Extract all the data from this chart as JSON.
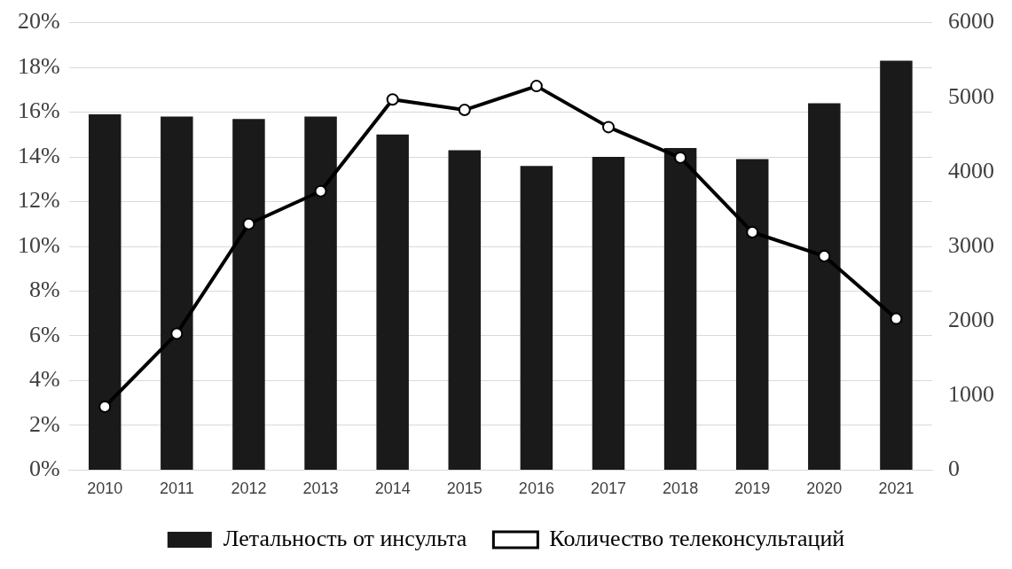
{
  "chart_data": {
    "type": "bar",
    "categories": [
      "2010",
      "2011",
      "2012",
      "2013",
      "2014",
      "2015",
      "2016",
      "2017",
      "2018",
      "2019",
      "2020",
      "2021"
    ],
    "series": [
      {
        "name": "Летальность от инсульта",
        "color": "#1a1a1a",
        "values": [
          15.9,
          15.8,
          15.7,
          15.8,
          15.0,
          14.3,
          13.6,
          14.0,
          14.4,
          13.9,
          16.4,
          18.3
        ]
      },
      {
        "name": "Количество телеконсультаций",
        "type": "line",
        "axis": "y2",
        "color": "#000000",
        "marker": "circle",
        "values": [
          850,
          1830,
          3300,
          3740,
          4970,
          4830,
          5150,
          4600,
          4190,
          3190,
          2870,
          2030
        ]
      }
    ],
    "ylim": [
      0,
      20
    ],
    "yticks": [
      {
        "value": 0,
        "label": "0%"
      },
      {
        "value": 2,
        "label": "2%"
      },
      {
        "value": 4,
        "label": "4%"
      },
      {
        "value": 6,
        "label": "6%"
      },
      {
        "value": 8,
        "label": "8%"
      },
      {
        "value": 10,
        "label": "10%"
      },
      {
        "value": 12,
        "label": "12%"
      },
      {
        "value": 14,
        "label": "14%"
      },
      {
        "value": 16,
        "label": "16%"
      },
      {
        "value": 18,
        "label": "18%"
      },
      {
        "value": 20,
        "label": "20%"
      }
    ],
    "y2lim": [
      0,
      6000
    ],
    "y2ticks": [
      0,
      1000,
      2000,
      3000,
      4000,
      5000,
      6000
    ],
    "grid": "y",
    "legend": "bottom"
  }
}
